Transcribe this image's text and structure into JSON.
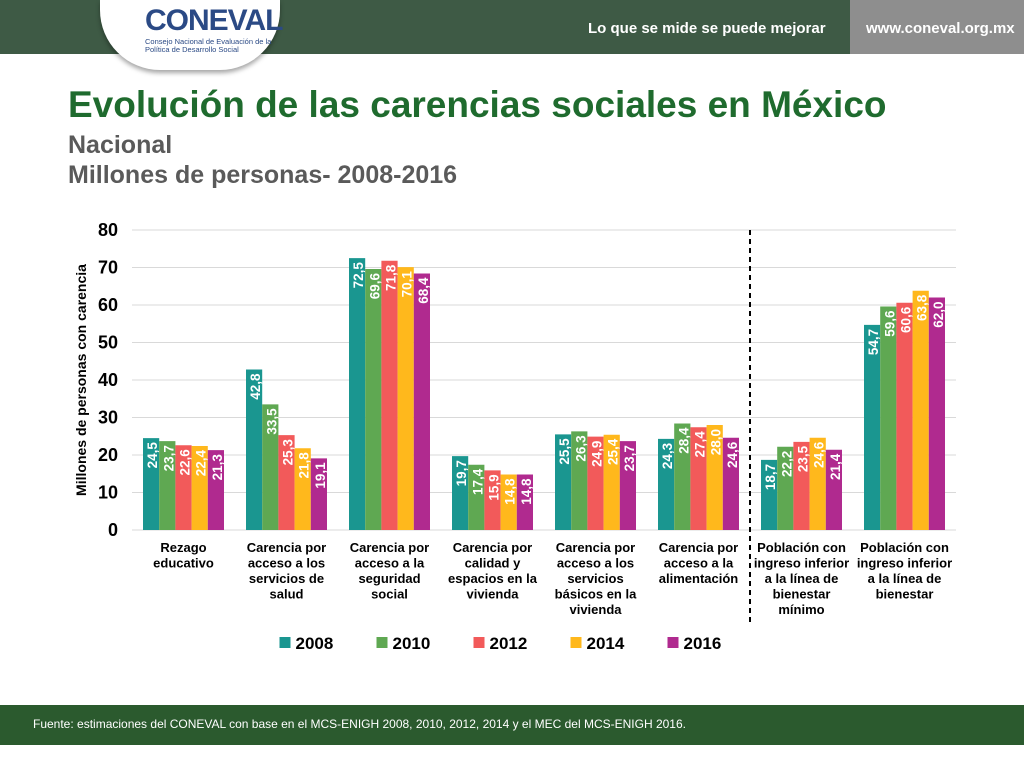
{
  "header": {
    "logo_name": "CONEVAL",
    "logo_subtitle": "Consejo Nacional de Evaluación de la Política de Desarrollo Social",
    "slogan": "Lo que se mide se puede mejorar",
    "website": "www.coneval.org.mx"
  },
  "title": "Evolución de las carencias sociales en México",
  "subtitle_line1": "Nacional",
  "subtitle_line2": "Millones de personas- 2008-2016",
  "footer": "Fuente: estimaciones del CONEVAL con base en el MCS-ENIGH 2008, 2010, 2012, 2014 y el MEC del MCS-ENIGH 2016.",
  "chart_data": {
    "type": "bar",
    "ylabel": "Millones de personas con carencia",
    "ylim": [
      0,
      80
    ],
    "yticks": [
      0,
      10,
      20,
      30,
      40,
      50,
      60,
      70,
      80
    ],
    "grid": true,
    "legend_position": "bottom",
    "categories": [
      [
        "Rezago",
        "educativo"
      ],
      [
        "Carencia por",
        "acceso a los",
        "servicios de",
        "salud"
      ],
      [
        "Carencia por",
        "acceso a la",
        "seguridad",
        "social"
      ],
      [
        "Carencia por",
        "calidad y",
        "espacios en la",
        "vivienda"
      ],
      [
        "Carencia por",
        "acceso a los",
        "servicios",
        "básicos en la",
        "vivienda"
      ],
      [
        "Carencia por",
        "acceso a la",
        "alimentación"
      ],
      [
        "Población con",
        "ingreso inferior",
        "a la línea de",
        "bienestar",
        "mínimo"
      ],
      [
        "Población con",
        "ingreso inferior",
        "a la línea de",
        "bienestar"
      ]
    ],
    "separator_after_category": 6,
    "series": [
      {
        "name": "2008",
        "color": "#1a9690",
        "values": [
          24.5,
          42.8,
          72.5,
          19.7,
          25.5,
          24.3,
          18.7,
          54.7
        ],
        "labels": [
          "24,5",
          "42,8",
          "72,5",
          "19,7",
          "25,5",
          "24,3",
          "18,7",
          "54,7"
        ]
      },
      {
        "name": "2010",
        "color": "#5fa852",
        "values": [
          23.7,
          33.5,
          69.6,
          17.4,
          26.3,
          28.4,
          22.2,
          59.6
        ],
        "labels": [
          "23,7",
          "33,5",
          "69,6",
          "17,4",
          "26,3",
          "28,4",
          "22,2",
          "59,6"
        ]
      },
      {
        "name": "2012",
        "color": "#f25a5a",
        "values": [
          22.6,
          25.3,
          71.8,
          15.9,
          24.9,
          27.4,
          23.5,
          60.6
        ],
        "labels": [
          "22,6",
          "25,3",
          "71,8",
          "15,9",
          "24,9",
          "27,4",
          "23,5",
          "60,6"
        ]
      },
      {
        "name": "2014",
        "color": "#ffb81c",
        "values": [
          22.4,
          21.8,
          70.1,
          14.8,
          25.4,
          28.0,
          24.6,
          63.8
        ],
        "labels": [
          "22,4",
          "21,8",
          "70,1",
          "14,8",
          "25,4",
          "28,0",
          "24,6",
          "63,8"
        ]
      },
      {
        "name": "2016",
        "color": "#b02a8f",
        "values": [
          21.3,
          19.1,
          68.4,
          14.8,
          23.7,
          24.6,
          21.4,
          62.0
        ],
        "labels": [
          "21,3",
          "19,1",
          "68,4",
          "14,8",
          "23,7",
          "24,6",
          "21,4",
          "62,0"
        ]
      }
    ]
  }
}
